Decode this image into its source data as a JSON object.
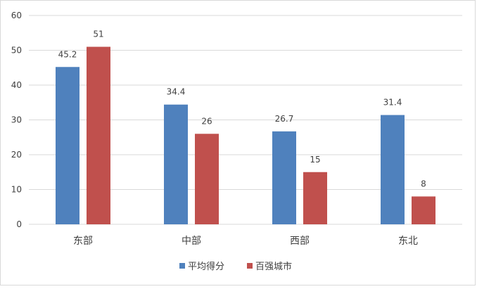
{
  "chart_data": {
    "type": "bar",
    "title": "",
    "xlabel": "",
    "ylabel": "",
    "categories": [
      "东部",
      "中部",
      "西部",
      "东北"
    ],
    "series": [
      {
        "name": "平均得分",
        "values": [
          45.2,
          34.4,
          26.7,
          31.4
        ],
        "color": "#4f81bd"
      },
      {
        "name": "百强城市",
        "values": [
          51,
          26,
          15,
          8
        ],
        "color": "#c0504d"
      }
    ],
    "ylim": [
      0,
      60
    ],
    "yticks": [
      0,
      10,
      20,
      30,
      40,
      50,
      60
    ],
    "grid": true,
    "legend_position": "bottom",
    "gridline_color": "#d9d9d9"
  }
}
